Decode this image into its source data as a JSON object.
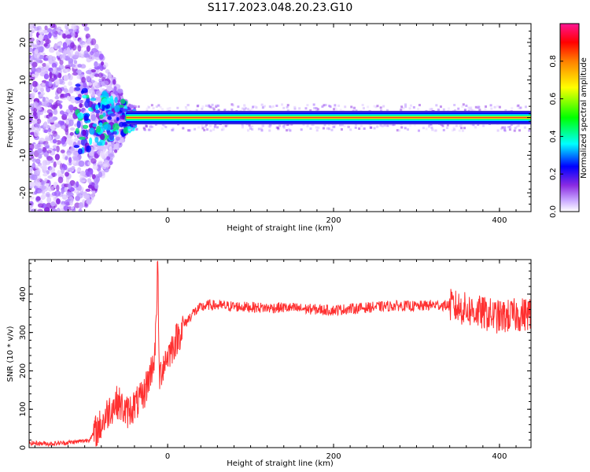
{
  "title": "S117.2023.048.20.23.G10",
  "chart_data": [
    {
      "type": "heatmap",
      "xlabel": "Height of straight line (km)",
      "ylabel": "Frequency (Hz)",
      "xlim": [
        -167,
        438
      ],
      "ylim": [
        -25,
        25
      ],
      "xticks": [
        0,
        200,
        400
      ],
      "yticks": [
        -20,
        -10,
        0,
        10,
        20
      ],
      "colorbar": {
        "label": "Normalized spectral amplitude",
        "range": [
          0,
          1
        ],
        "ticks": [
          0.0,
          0.2,
          0.4,
          0.6,
          0.8
        ],
        "colormap": [
          "#ffffff",
          "#c9a8ff",
          "#8a2be2",
          "#0000ff",
          "#00ffff",
          "#00ff00",
          "#ffff00",
          "#ff8000",
          "#ff0000",
          "#ff1493"
        ]
      },
      "description_points": {
        "x_range_km": [
          -167,
          438
        ],
        "dominant_frequency_hz": 0,
        "noisy_region_until_km": -50,
        "strong_line_start_km": -50
      }
    },
    {
      "type": "line",
      "xlabel": "Height of straight line (km)",
      "ylabel": "SNR (10 * v/v)",
      "xlim": [
        -167,
        438
      ],
      "ylim": [
        0,
        490
      ],
      "xticks": [
        0,
        200,
        400
      ],
      "yticks": [
        0,
        100,
        200,
        300,
        400
      ],
      "series": [
        {
          "color": "#ff3030",
          "x": [
            -167,
            -140,
            -110,
            -95,
            -80,
            -70,
            -60,
            -50,
            -40,
            -30,
            -20,
            -15,
            -12,
            -10,
            -5,
            0,
            10,
            20,
            30,
            40,
            50,
            60,
            80,
            100,
            120,
            140,
            160,
            180,
            200,
            220,
            240,
            260,
            280,
            300,
            320,
            340,
            360,
            380,
            400,
            420,
            438
          ],
          "y": [
            12,
            10,
            15,
            20,
            60,
            100,
            120,
            90,
            110,
            130,
            200,
            250,
            480,
            180,
            220,
            240,
            280,
            320,
            350,
            365,
            372,
            370,
            368,
            366,
            364,
            365,
            362,
            360,
            358,
            362,
            365,
            368,
            370,
            368,
            372,
            370,
            360,
            350,
            340,
            345,
            350
          ]
        }
      ]
    }
  ]
}
